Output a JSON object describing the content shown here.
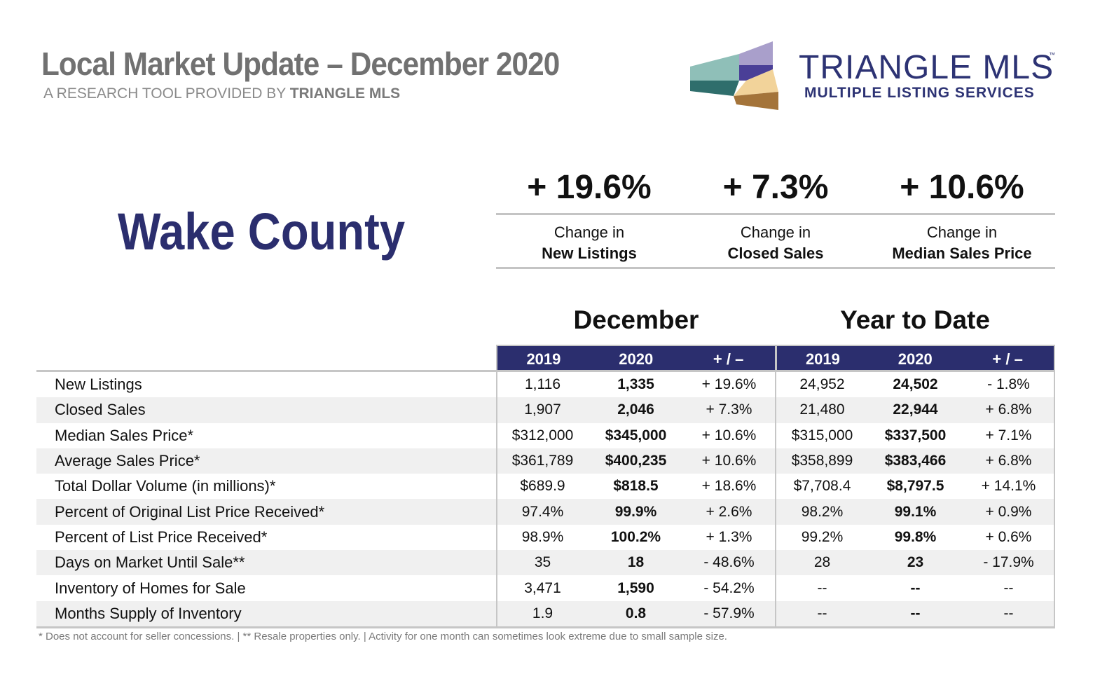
{
  "header": {
    "title": "Local Market Update – December 2020",
    "subtitle_prefix": "A RESEARCH TOOL PROVIDED BY",
    "subtitle_brand": "TRIANGLE MLS"
  },
  "logo": {
    "name": "TRIANGLE MLS",
    "trademark": "™",
    "tagline": "MULTIPLE LISTING SERVICES",
    "colors": [
      "#8fbfb8",
      "#2f6e6c",
      "#a99fcb",
      "#4a3f97",
      "#f2d39a",
      "#a4743a"
    ]
  },
  "county": "Wake County",
  "kpis": [
    {
      "value": "+ 19.6%",
      "line1": "Change in",
      "line2": "New Listings"
    },
    {
      "value": "+ 7.3%",
      "line1": "Change in",
      "line2": "Closed Sales"
    },
    {
      "value": "+ 10.6%",
      "line1": "Change in",
      "line2": "Median Sales Price"
    }
  ],
  "groups": {
    "december": "December",
    "ytd": "Year to Date"
  },
  "columns": [
    "2019",
    "2020",
    "+ / –",
    "2019",
    "2020",
    "+ / –"
  ],
  "rows": [
    {
      "label": "New Listings",
      "cells": [
        "1,116",
        "1,335",
        "+ 19.6%",
        "24,952",
        "24,502",
        "- 1.8%"
      ]
    },
    {
      "label": "Closed Sales",
      "cells": [
        "1,907",
        "2,046",
        "+ 7.3%",
        "21,480",
        "22,944",
        "+ 6.8%"
      ]
    },
    {
      "label": "Median Sales Price*",
      "cells": [
        "$312,000",
        "$345,000",
        "+ 10.6%",
        "$315,000",
        "$337,500",
        "+ 7.1%"
      ]
    },
    {
      "label": "Average Sales Price*",
      "cells": [
        "$361,789",
        "$400,235",
        "+ 10.6%",
        "$358,899",
        "$383,466",
        "+ 6.8%"
      ]
    },
    {
      "label": "Total Dollar Volume (in millions)*",
      "cells": [
        "$689.9",
        "$818.5",
        "+ 18.6%",
        "$7,708.4",
        "$8,797.5",
        "+ 14.1%"
      ]
    },
    {
      "label": "Percent of Original List Price Received*",
      "cells": [
        "97.4%",
        "99.9%",
        "+ 2.6%",
        "98.2%",
        "99.1%",
        "+ 0.9%"
      ]
    },
    {
      "label": "Percent of List Price Received*",
      "cells": [
        "98.9%",
        "100.2%",
        "+ 1.3%",
        "99.2%",
        "99.8%",
        "+ 0.6%"
      ]
    },
    {
      "label": "Days on Market Until Sale**",
      "cells": [
        "35",
        "18",
        "- 48.6%",
        "28",
        "23",
        "- 17.9%"
      ]
    },
    {
      "label": "Inventory of Homes for Sale",
      "cells": [
        "3,471",
        "1,590",
        "- 54.2%",
        "--",
        "--",
        "--"
      ]
    },
    {
      "label": "Months Supply of Inventory",
      "cells": [
        "1.9",
        "0.8",
        "- 57.9%",
        "--",
        "--",
        "--"
      ]
    }
  ],
  "footnote": "* Does not account for seller concessions.  |  ** Resale properties only.  |  Activity for one month can sometimes look extreme due to small sample size.",
  "colors": {
    "navy": "#2b2e6e",
    "title_gray": "#717171",
    "rule_gray": "#c6c6c6"
  }
}
